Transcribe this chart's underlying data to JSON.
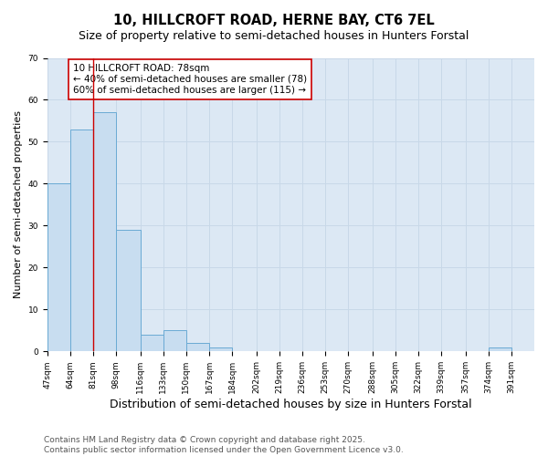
{
  "title": "10, HILLCROFT ROAD, HERNE BAY, CT6 7EL",
  "subtitle": "Size of property relative to semi-detached houses in Hunters Forstal",
  "xlabel": "Distribution of semi-detached houses by size in Hunters Forstal",
  "ylabel": "Number of semi-detached properties",
  "categories": [
    "47sqm",
    "64sqm",
    "81sqm",
    "98sqm",
    "116sqm",
    "133sqm",
    "150sqm",
    "167sqm",
    "184sqm",
    "202sqm",
    "219sqm",
    "236sqm",
    "253sqm",
    "270sqm",
    "288sqm",
    "305sqm",
    "322sqm",
    "339sqm",
    "357sqm",
    "374sqm",
    "391sqm"
  ],
  "values": [
    40,
    53,
    57,
    29,
    4,
    5,
    2,
    1,
    0,
    0,
    0,
    0,
    0,
    0,
    0,
    0,
    0,
    0,
    0,
    1,
    0
  ],
  "bin_edges": [
    47,
    64,
    81,
    98,
    116,
    133,
    150,
    167,
    184,
    202,
    219,
    236,
    253,
    270,
    288,
    305,
    322,
    339,
    357,
    374,
    391,
    408
  ],
  "bar_color": "#c8ddf0",
  "bar_edge_color": "#6aaad4",
  "vline_x": 81,
  "vline_color": "#cc0000",
  "annotation_text": "10 HILLCROFT ROAD: 78sqm\n← 40% of semi-detached houses are smaller (78)\n60% of semi-detached houses are larger (115) →",
  "annotation_box_color": "#ffffff",
  "annotation_box_edge": "#cc0000",
  "ylim": [
    0,
    70
  ],
  "yticks": [
    0,
    10,
    20,
    30,
    40,
    50,
    60,
    70
  ],
  "grid_color": "#c8d8e8",
  "background_color": "#dce8f4",
  "footer": "Contains HM Land Registry data © Crown copyright and database right 2025.\nContains public sector information licensed under the Open Government Licence v3.0.",
  "title_fontsize": 10.5,
  "subtitle_fontsize": 9,
  "xlabel_fontsize": 9,
  "ylabel_fontsize": 8,
  "tick_fontsize": 6.5,
  "footer_fontsize": 6.5,
  "ann_fontsize": 7.5
}
